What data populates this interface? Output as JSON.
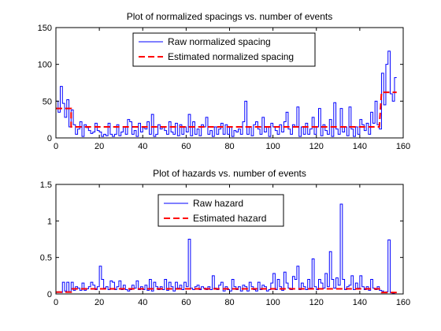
{
  "chart_data": [
    {
      "type": "line",
      "title": "Plot of normalized spacings vs. number of events",
      "xlabel": "",
      "ylabel": "",
      "xlim": [
        0,
        160
      ],
      "ylim": [
        0,
        150
      ],
      "xticks": [
        0,
        20,
        40,
        60,
        80,
        100,
        120,
        140,
        160
      ],
      "yticks": [
        0,
        50,
        100,
        150
      ],
      "grid": false,
      "legend_position": "top-center",
      "series": [
        {
          "name": "Raw normalized spacing",
          "style": "solid-stairs",
          "color": "#0000ff",
          "values": [
            50,
            35,
            70,
            47,
            28,
            52,
            15,
            38,
            18,
            5,
            12,
            22,
            2,
            18,
            14,
            10,
            6,
            8,
            20,
            10,
            8,
            2,
            5,
            3,
            20,
            5,
            2,
            5,
            18,
            3,
            8,
            15,
            5,
            25,
            22,
            5,
            10,
            2,
            20,
            8,
            14,
            12,
            22,
            5,
            32,
            2,
            5,
            18,
            12,
            15,
            10,
            5,
            22,
            8,
            5,
            20,
            3,
            18,
            5,
            15,
            8,
            32,
            3,
            22,
            5,
            12,
            3,
            18,
            15,
            28,
            5,
            10,
            2,
            15,
            5,
            12,
            20,
            5,
            18,
            5,
            15,
            2,
            10,
            8,
            12,
            5,
            22,
            50,
            5,
            15,
            3,
            18,
            22,
            12,
            5,
            28,
            8,
            15,
            2,
            20,
            15,
            10,
            5,
            18,
            8,
            22,
            35,
            12,
            5,
            18,
            15,
            42,
            2,
            15,
            5,
            20,
            5,
            12,
            28,
            5,
            15,
            40,
            3,
            18,
            10,
            5,
            25,
            2,
            48,
            12,
            5,
            40,
            8,
            15,
            3,
            42,
            12,
            2,
            15,
            5,
            25,
            18,
            10,
            20,
            5,
            35,
            20,
            50,
            18,
            12,
            88,
            45,
            100,
            118,
            60,
            50,
            82
          ]
        },
        {
          "name": "Estimated normalized spacing",
          "style": "dashed",
          "color": "#ff0000",
          "x": [
            0,
            7,
            7,
            149,
            150,
            157
          ],
          "values": [
            40,
            40,
            15,
            15,
            62,
            62
          ]
        }
      ]
    },
    {
      "type": "line",
      "title": "Plot of hazards vs. number of events",
      "xlabel": "",
      "ylabel": "",
      "xlim": [
        0,
        160
      ],
      "ylim": [
        0,
        1.5
      ],
      "xticks": [
        0,
        20,
        40,
        60,
        80,
        100,
        120,
        140,
        160
      ],
      "yticks": [
        0,
        0.5,
        1,
        1.5
      ],
      "grid": false,
      "legend_position": "top-center",
      "series": [
        {
          "name": "Raw hazard",
          "style": "solid-stairs",
          "color": "#0000ff",
          "values": [
            0.02,
            0.03,
            0.02,
            0.16,
            0.04,
            0.16,
            0.03,
            0.16,
            0.05,
            0.1,
            0.08,
            0.05,
            0.15,
            0.05,
            0.07,
            0.1,
            0.16,
            0.12,
            0.06,
            0.1,
            0.38,
            0.2,
            0.08,
            0.1,
            0.06,
            0.18,
            0.16,
            0.06,
            0.1,
            0.18,
            0.06,
            0.12,
            0.06,
            0.04,
            0.06,
            0.12,
            0.08,
            0.18,
            0.06,
            0.1,
            0.06,
            0.12,
            0.05,
            0.2,
            0.04,
            0.16,
            0.1,
            0.06,
            0.1,
            0.06,
            0.2,
            0.05,
            0.16,
            0.1,
            0.04,
            0.16,
            0.08,
            0.12,
            0.06,
            0.16,
            0.1,
            0.75,
            0.08,
            0.06,
            0.1,
            0.12,
            0.06,
            0.1,
            0.08,
            0.06,
            0.1,
            0.06,
            0.25,
            0.08,
            0.06,
            0.12,
            0.16,
            0.04,
            0.1,
            0.06,
            0.04,
            0.2,
            0.1,
            0.06,
            0.1,
            0.04,
            0.12,
            0.1,
            0.04,
            0.16,
            0.1,
            0.06,
            0.04,
            0.16,
            0.06,
            0.12,
            0.1,
            0.04,
            0.06,
            0.15,
            0.28,
            0.06,
            0.2,
            0.1,
            0.05,
            0.3,
            0.15,
            0.08,
            0.06,
            0.24,
            0.2,
            0.38,
            0.06,
            0.15,
            0.1,
            0.06,
            0.2,
            0.08,
            0.48,
            0.1,
            0.06,
            0.2,
            0.15,
            0.08,
            0.28,
            0.1,
            0.58,
            0.2,
            0.08,
            0.22,
            0.12,
            1.23,
            0.2,
            0.06,
            0.1,
            0.12,
            0.25,
            0.06,
            0.15,
            0.08,
            0.25,
            0.1,
            0.06,
            0.1,
            0.05,
            0.2,
            0.08,
            0.06,
            0.1,
            0.05,
            0.04,
            0.02,
            0.03,
            0.74,
            0.02,
            0.01,
            0.02
          ]
        },
        {
          "name": "Estimated hazard",
          "style": "dashed",
          "color": "#ff0000",
          "x": [
            0,
            7,
            7,
            149,
            150,
            157
          ],
          "values": [
            0.025,
            0.025,
            0.07,
            0.07,
            0.02,
            0.02
          ]
        }
      ]
    }
  ]
}
